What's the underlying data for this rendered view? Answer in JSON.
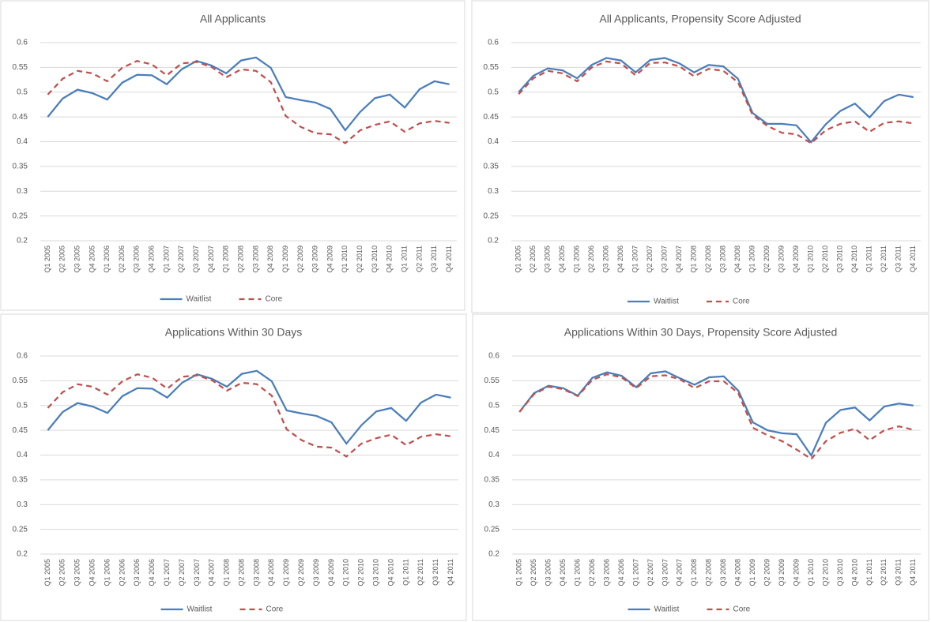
{
  "chart_data": [
    {
      "type": "line",
      "title": "All Applicants",
      "categories": [
        "Q1 2005",
        "Q2 2005",
        "Q3 2005",
        "Q4 2005",
        "Q1 2006",
        "Q2 2006",
        "Q3 2006",
        "Q4 2006",
        "Q1 2007",
        "Q2 2007",
        "Q3 2007",
        "Q4 2007",
        "Q1 2008",
        "Q2 2008",
        "Q3 2008",
        "Q4 2008",
        "Q1 2009",
        "Q2 2009",
        "Q3 2009",
        "Q4 2009",
        "Q1 2010",
        "Q2 2010",
        "Q3 2010",
        "Q4 2010",
        "Q1 2011",
        "Q2 2011",
        "Q3 2011",
        "Q4 2011"
      ],
      "series": [
        {
          "name": "Waitlist",
          "color": "#4a7ebb",
          "line_style": "solid",
          "values": [
            0.45,
            0.487,
            0.505,
            0.498,
            0.485,
            0.519,
            0.535,
            0.534,
            0.516,
            0.546,
            0.563,
            0.554,
            0.538,
            0.564,
            0.57,
            0.549,
            0.49,
            0.484,
            0.479,
            0.466,
            0.423,
            0.46,
            0.488,
            0.495,
            0.469,
            0.506,
            0.522,
            0.516
          ]
        },
        {
          "name": "Core",
          "color": "#c0504d",
          "line_style": "dashed",
          "values": [
            0.495,
            0.527,
            0.543,
            0.538,
            0.522,
            0.549,
            0.563,
            0.556,
            0.534,
            0.558,
            0.561,
            0.551,
            0.53,
            0.546,
            0.543,
            0.52,
            0.452,
            0.43,
            0.417,
            0.415,
            0.397,
            0.423,
            0.434,
            0.441,
            0.42,
            0.437,
            0.442,
            0.438
          ]
        }
      ],
      "ylim": [
        0.2,
        0.6
      ],
      "yticks": [
        0.2,
        0.25,
        0.3,
        0.35,
        0.4,
        0.45,
        0.5,
        0.55,
        0.6
      ],
      "grid": true,
      "legend": "bottom"
    },
    {
      "type": "line",
      "title": "All Applicants, Propensity Score Adjusted",
      "categories": [
        "Q1 2005",
        "Q2 2005",
        "Q3 2005",
        "Q4 2005",
        "Q1 2006",
        "Q2 2006",
        "Q3 2006",
        "Q4 2006",
        "Q1 2007",
        "Q2 2007",
        "Q3 2007",
        "Q4 2007",
        "Q1 2008",
        "Q2 2008",
        "Q3 2008",
        "Q4 2008",
        "Q1 2009",
        "Q2 2009",
        "Q3 2009",
        "Q4 2009",
        "Q1 2010",
        "Q2 2010",
        "Q3 2010",
        "Q4 2010",
        "Q1 2011",
        "Q2 2011",
        "Q3 2011",
        "Q4 2011"
      ],
      "series": [
        {
          "name": "Waitlist",
          "color": "#4a7ebb",
          "line_style": "solid",
          "values": [
            0.5,
            0.533,
            0.548,
            0.544,
            0.528,
            0.555,
            0.569,
            0.564,
            0.54,
            0.565,
            0.569,
            0.558,
            0.54,
            0.555,
            0.552,
            0.527,
            0.458,
            0.436,
            0.436,
            0.433,
            0.399,
            0.435,
            0.462,
            0.477,
            0.449,
            0.482,
            0.495,
            0.49
          ]
        },
        {
          "name": "Core",
          "color": "#c0504d",
          "line_style": "dashed",
          "values": [
            0.496,
            0.528,
            0.543,
            0.538,
            0.522,
            0.55,
            0.562,
            0.558,
            0.534,
            0.559,
            0.56,
            0.552,
            0.532,
            0.547,
            0.543,
            0.52,
            0.454,
            0.432,
            0.418,
            0.415,
            0.397,
            0.423,
            0.436,
            0.441,
            0.42,
            0.438,
            0.441,
            0.437
          ]
        }
      ],
      "ylim": [
        0.2,
        0.6
      ],
      "yticks": [
        0.2,
        0.25,
        0.3,
        0.35,
        0.4,
        0.45,
        0.5,
        0.55,
        0.6
      ],
      "grid": true,
      "legend": "bottom"
    },
    {
      "type": "line",
      "title": "Applications Within 30 Days",
      "categories": [
        "Q1 2005",
        "Q2 2005",
        "Q3 2005",
        "Q4 2005",
        "Q1 2006",
        "Q2 2006",
        "Q3 2006",
        "Q4 2006",
        "Q1 2007",
        "Q2 2007",
        "Q3 2007",
        "Q4 2007",
        "Q1 2008",
        "Q2 2008",
        "Q3 2008",
        "Q4 2008",
        "Q1 2009",
        "Q2 2009",
        "Q3 2009",
        "Q4 2009",
        "Q1 2010",
        "Q2 2010",
        "Q3 2010",
        "Q4 2010",
        "Q1 2011",
        "Q2 2011",
        "Q3 2011",
        "Q4 2011"
      ],
      "series": [
        {
          "name": "Waitlist",
          "color": "#4a7ebb",
          "line_style": "solid",
          "values": [
            0.45,
            0.487,
            0.505,
            0.498,
            0.485,
            0.519,
            0.535,
            0.534,
            0.516,
            0.546,
            0.563,
            0.554,
            0.538,
            0.564,
            0.57,
            0.549,
            0.49,
            0.484,
            0.479,
            0.466,
            0.423,
            0.46,
            0.488,
            0.495,
            0.469,
            0.506,
            0.522,
            0.516
          ]
        },
        {
          "name": "Core",
          "color": "#c0504d",
          "line_style": "dashed",
          "values": [
            0.495,
            0.527,
            0.543,
            0.538,
            0.522,
            0.549,
            0.563,
            0.556,
            0.534,
            0.558,
            0.561,
            0.551,
            0.53,
            0.546,
            0.543,
            0.52,
            0.452,
            0.43,
            0.417,
            0.415,
            0.397,
            0.423,
            0.434,
            0.441,
            0.42,
            0.437,
            0.442,
            0.438
          ]
        }
      ],
      "ylim": [
        0.2,
        0.6
      ],
      "yticks": [
        0.2,
        0.25,
        0.3,
        0.35,
        0.4,
        0.45,
        0.5,
        0.55,
        0.6
      ],
      "grid": true,
      "legend": "bottom"
    },
    {
      "type": "line",
      "title": "Applications Within 30 Days, Propensity Score Adjusted",
      "categories": [
        "Q1 2005",
        "Q2 2005",
        "Q3 2005",
        "Q4 2005",
        "Q1 2006",
        "Q2 2006",
        "Q3 2006",
        "Q4 2006",
        "Q1 2007",
        "Q2 2007",
        "Q3 2007",
        "Q4 2007",
        "Q1 2008",
        "Q2 2008",
        "Q3 2008",
        "Q4 2008",
        "Q1 2009",
        "Q2 2009",
        "Q3 2009",
        "Q4 2009",
        "Q1 2010",
        "Q2 2010",
        "Q3 2010",
        "Q4 2010",
        "Q1 2011",
        "Q2 2011",
        "Q3 2011",
        "Q4 2011"
      ],
      "series": [
        {
          "name": "Waitlist",
          "color": "#4a7ebb",
          "line_style": "solid",
          "values": [
            0.487,
            0.525,
            0.54,
            0.535,
            0.52,
            0.556,
            0.567,
            0.56,
            0.537,
            0.565,
            0.569,
            0.555,
            0.542,
            0.557,
            0.559,
            0.53,
            0.466,
            0.45,
            0.444,
            0.442,
            0.399,
            0.465,
            0.491,
            0.496,
            0.47,
            0.498,
            0.504,
            0.5
          ]
        },
        {
          "name": "Core",
          "color": "#c0504d",
          "line_style": "dashed",
          "values": [
            0.487,
            0.523,
            0.538,
            0.533,
            0.519,
            0.552,
            0.563,
            0.557,
            0.535,
            0.559,
            0.561,
            0.553,
            0.535,
            0.549,
            0.549,
            0.525,
            0.455,
            0.44,
            0.428,
            0.411,
            0.392,
            0.428,
            0.445,
            0.453,
            0.43,
            0.45,
            0.458,
            0.451
          ]
        }
      ],
      "ylim": [
        0.2,
        0.6
      ],
      "yticks": [
        0.2,
        0.25,
        0.3,
        0.35,
        0.4,
        0.45,
        0.5,
        0.55,
        0.6
      ],
      "grid": true,
      "legend": "bottom"
    }
  ]
}
